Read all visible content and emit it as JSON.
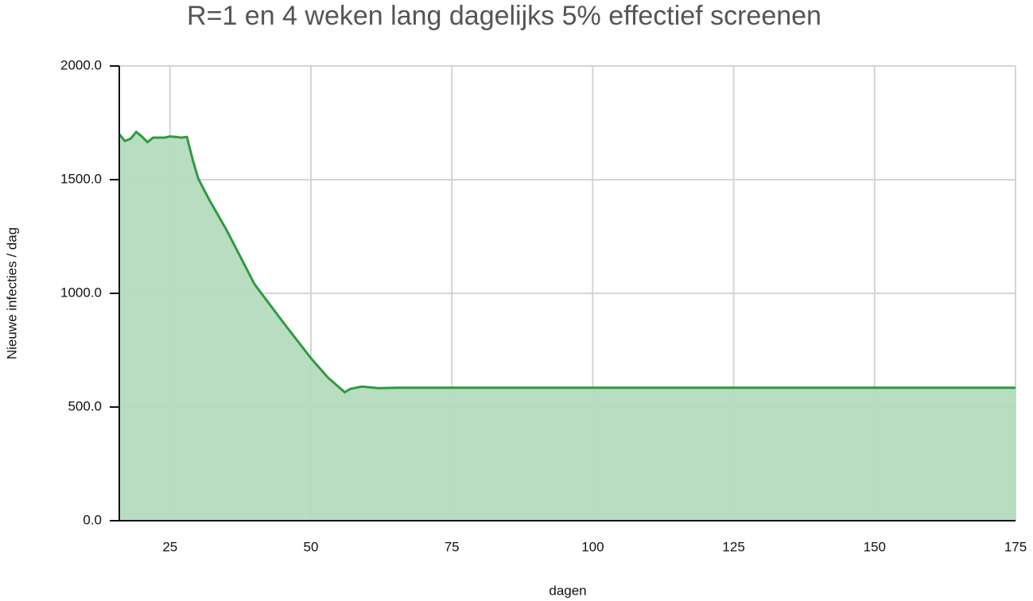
{
  "chart_data": {
    "type": "area",
    "title": "R=1 en 4 weken lang dagelijks 5% effectief screenen",
    "xlabel": "dagen",
    "ylabel": "Nieuwe infecties / dag",
    "x": [
      16,
      17,
      18,
      19,
      20,
      21,
      22,
      23,
      24,
      25,
      26,
      27,
      28,
      29,
      30,
      32,
      35,
      40,
      45,
      50,
      53,
      56,
      57,
      59,
      62,
      65,
      75,
      100,
      125,
      150,
      175
    ],
    "series": [
      {
        "name": "Nieuwe infecties",
        "color": "#2f9a40",
        "fill": "#b5dbbe",
        "values": [
          1700,
          1670,
          1680,
          1710,
          1690,
          1665,
          1685,
          1685,
          1685,
          1690,
          1688,
          1685,
          1688,
          1590,
          1505,
          1410,
          1280,
          1040,
          875,
          715,
          630,
          565,
          580,
          590,
          583,
          585,
          585,
          585,
          585,
          585,
          585
        ]
      }
    ],
    "xlim": [
      16,
      175
    ],
    "ylim": [
      0,
      2000
    ],
    "xticks": [
      25,
      50,
      75,
      100,
      125,
      150,
      175
    ],
    "yticks": [
      {
        "value": 0,
        "label": "0.0"
      },
      {
        "value": 500,
        "label": "500.0"
      },
      {
        "value": 1000,
        "label": "1000.0"
      },
      {
        "value": 1500,
        "label": "1500.0"
      },
      {
        "value": 2000,
        "label": "2000.0"
      }
    ],
    "grid": true
  }
}
